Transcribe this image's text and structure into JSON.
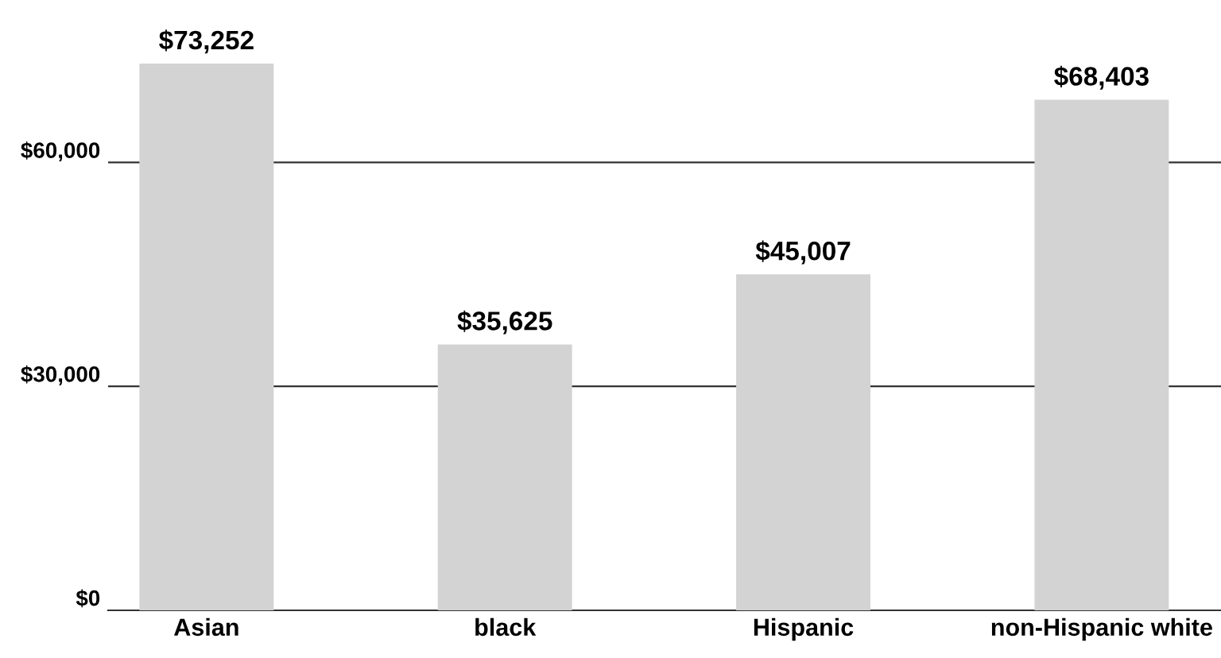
{
  "chart_data": {
    "type": "bar",
    "categories": [
      "Asian",
      "black",
      "Hispanic",
      "non-Hispanic white"
    ],
    "values": [
      73252,
      35625,
      45007,
      68403
    ],
    "value_labels": [
      "$73,252",
      "$35,625",
      "$45,007",
      "$68,403"
    ],
    "color": "#d3d3d3",
    "ylim": [
      0,
      73252
    ],
    "yticks": [
      {
        "value": 0,
        "label": "$0"
      },
      {
        "value": 30000,
        "label": "$30,000"
      },
      {
        "value": 60000,
        "label": "$60,000"
      }
    ],
    "grid": "y"
  }
}
